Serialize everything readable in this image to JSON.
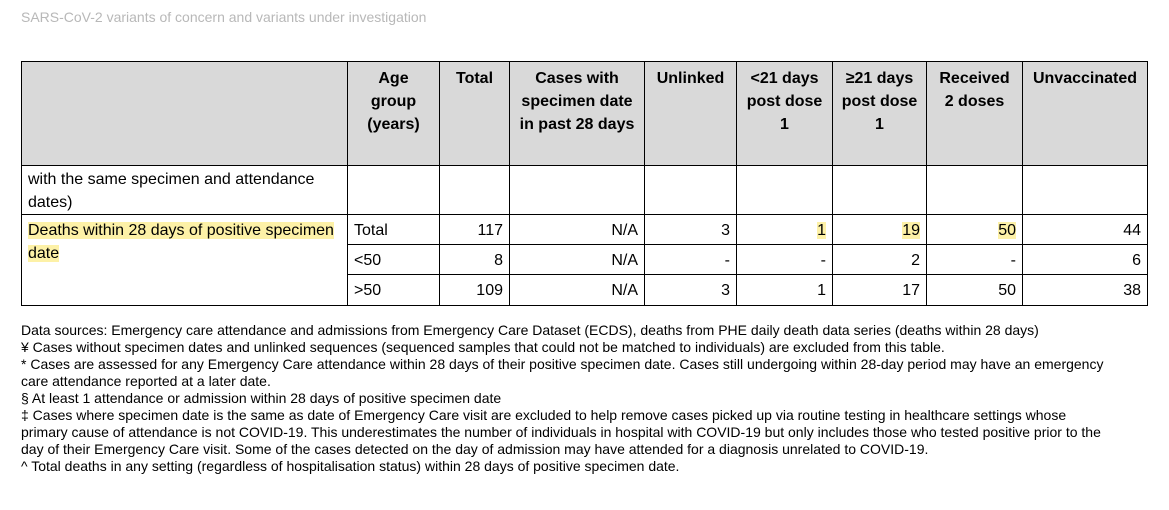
{
  "title": "SARS-CoV-2 variants of concern and variants under investigation",
  "table": {
    "headers": {
      "category": "",
      "age_group": "Age group (years)",
      "total": "Total",
      "cases_with_specimen": "Cases with specimen date in past 28 days",
      "unlinked": "Unlinked",
      "lt21": "<21 days post dose 1",
      "ge21": "≥21 days post dose 1",
      "received2": "Received 2 doses",
      "unvaccinated": "Unvaccinated"
    },
    "continuation_row": {
      "label": "with the same specimen and attendance dates)"
    },
    "deaths_section": {
      "label": "Deaths within 28 days of positive specimen date",
      "rows": [
        {
          "age": "Total",
          "total": "117",
          "cases": "N/A",
          "unlinked": "3",
          "lt21": "1",
          "ge21": "19",
          "received2": "50",
          "unvaccinated": "44"
        },
        {
          "age": "<50",
          "total": "8",
          "cases": "N/A",
          "unlinked": "-",
          "lt21": "-",
          "ge21": "2",
          "received2": "-",
          "unvaccinated": "6"
        },
        {
          "age": ">50",
          "total": "109",
          "cases": "N/A",
          "unlinked": "3",
          "lt21": "1",
          "ge21": "17",
          "received2": "50",
          "unvaccinated": "38"
        }
      ]
    }
  },
  "notes": [
    "Data sources: Emergency care attendance and admissions from Emergency Care Dataset (ECDS), deaths from PHE daily death data series (deaths within 28 days)",
    "¥ Cases without specimen dates and unlinked sequences (sequenced samples that could not be matched to individuals) are excluded from this table.",
    "* Cases are assessed for any Emergency Care attendance within 28 days of their positive specimen date. Cases still undergoing within 28-day period may have an emergency care attendance reported at a later date.",
    "§ At least 1 attendance or admission within 28 days of positive specimen date",
    "‡ Cases where specimen date is the same as date of Emergency Care visit are excluded to help remove cases picked up via routine testing in healthcare settings whose primary cause of attendance is not COVID-19. This underestimates the number of individuals in hospital with COVID-19 but only includes those who tested positive prior to the day of their Emergency Care visit. Some of the cases detected on the day of admission may have attended for a diagnosis unrelated to COVID-19.",
    "^ Total deaths in any setting (regardless of hospitalisation status) within 28 days of positive specimen date."
  ],
  "colors": {
    "header_bg": "#d9d9d9",
    "highlight": "#fdf1a7",
    "title": "#b8b8b8"
  }
}
